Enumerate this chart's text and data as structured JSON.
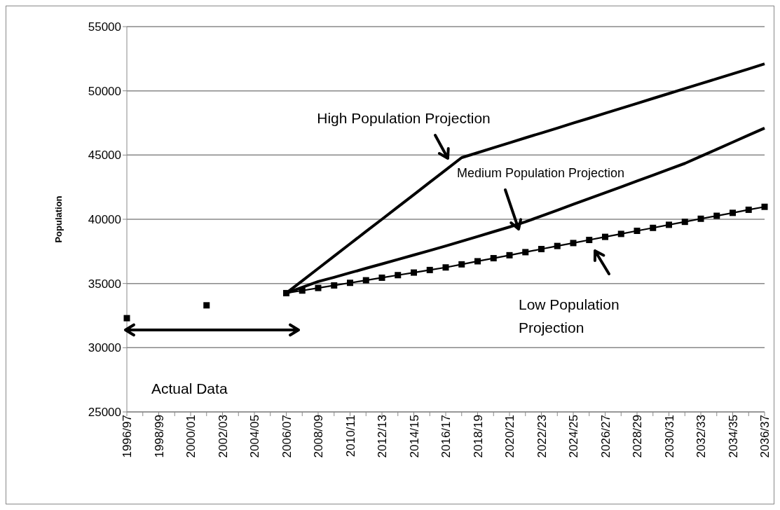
{
  "chart_data": {
    "type": "line",
    "ylabel": "Population",
    "categories": [
      "1996/97",
      null,
      "1998/99",
      null,
      "2000/01",
      null,
      "2002/03",
      null,
      "2004/05",
      null,
      "2006/07",
      null,
      "2008/09",
      null,
      "2010/11",
      null,
      "2012/13",
      null,
      "2014/15",
      null,
      "2016/17",
      null,
      "2018/19",
      null,
      "2020/21",
      null,
      "2022/23",
      null,
      "2024/25",
      null,
      "2026/27",
      null,
      "2028/29",
      null,
      "2030/31",
      null,
      "2032/33",
      null,
      "2034/35",
      null,
      "2036/37"
    ],
    "series": [
      {
        "color": "#000000",
        "marker": "none",
        "values": [
          null,
          null,
          null,
          null,
          null,
          null,
          null,
          null,
          null,
          null,
          34250,
          35210,
          36170,
          37130,
          38090,
          39050,
          40000,
          40960,
          41920,
          42880,
          43840,
          44800,
          45180,
          45570,
          45950,
          46340,
          46720,
          47100,
          47490,
          47870,
          48260,
          48640,
          49020,
          49410,
          49790,
          50180,
          50560,
          50940,
          51330,
          51710,
          52100
        ]
      },
      {
        "color": "#000000",
        "marker": "none",
        "values": [
          null,
          null,
          null,
          null,
          null,
          null,
          null,
          null,
          null,
          null,
          34250,
          34700,
          35150,
          35480,
          35830,
          36180,
          36520,
          36870,
          37220,
          37570,
          37920,
          38290,
          38660,
          39030,
          39400,
          39800,
          40250,
          40700,
          41160,
          41610,
          42070,
          42520,
          42980,
          43430,
          43890,
          44350,
          44900,
          45450,
          46000,
          46550,
          47100
        ]
      },
      {
        "color": "#000000",
        "marker": "square",
        "values": [
          null,
          null,
          null,
          null,
          null,
          null,
          null,
          null,
          null,
          null,
          34250,
          34450,
          34650,
          34850,
          35050,
          35250,
          35450,
          35650,
          35850,
          36050,
          36250,
          36490,
          36730,
          36970,
          37200,
          37440,
          37680,
          37920,
          38150,
          38390,
          38630,
          38860,
          39100,
          39330,
          39570,
          39800,
          40040,
          40270,
          40500,
          40740,
          40970
        ]
      },
      {
        "type": "scatter",
        "color": "#000000",
        "marker": "square",
        "values": [
          32300,
          null,
          null,
          null,
          null,
          33300,
          null,
          null,
          null,
          null,
          null,
          null,
          null,
          null,
          null,
          null,
          null,
          null,
          null,
          null,
          null,
          null,
          null,
          null,
          null,
          null,
          null,
          null,
          null,
          null,
          null,
          null,
          null,
          null,
          null,
          null,
          null,
          null,
          null,
          null,
          null
        ]
      }
    ],
    "ylim": [
      25000,
      55000
    ],
    "yticks": [
      25000,
      30000,
      35000,
      40000,
      45000,
      50000,
      55000
    ],
    "grid": "y",
    "legend": false,
    "annotations": [
      "High Population Projection",
      "Medium Population Projection",
      "Low Population Projection",
      "Actual Data"
    ]
  }
}
